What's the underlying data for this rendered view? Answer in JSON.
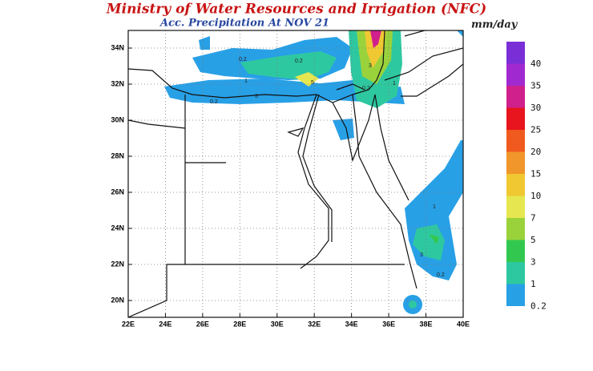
{
  "header": {
    "title": "Ministry of Water Resources and Irrigation (NFC)",
    "subtitle": "Acc. Precipitation",
    "date": "At NOV 21"
  },
  "map": {
    "latitude_labels": [
      "34N",
      "32N",
      "30N",
      "28N",
      "26N",
      "24N",
      "22N",
      "20N"
    ],
    "longitude_labels": [
      "22E",
      "24E",
      "26E",
      "28E",
      "30E",
      "32E",
      "34E",
      "36E",
      "38E",
      "40E"
    ],
    "contour_labels": [
      "0.2",
      "0.2",
      "1",
      "0.2",
      "3",
      "5",
      "0.2",
      "1",
      "3",
      "1",
      "3",
      "0.2"
    ]
  },
  "colorbar": {
    "unit": "mm/day",
    "levels": [
      40,
      35,
      30,
      25,
      20,
      15,
      10,
      7,
      5,
      3,
      1,
      0.2
    ],
    "colors": [
      "#7a2fd6",
      "#a02ad0",
      "#d0208c",
      "#e8141e",
      "#f05a1e",
      "#f0962a",
      "#f0c832",
      "#e6e650",
      "#9ad23c",
      "#32c850",
      "#2ec8a0",
      "#28a0e6"
    ]
  }
}
